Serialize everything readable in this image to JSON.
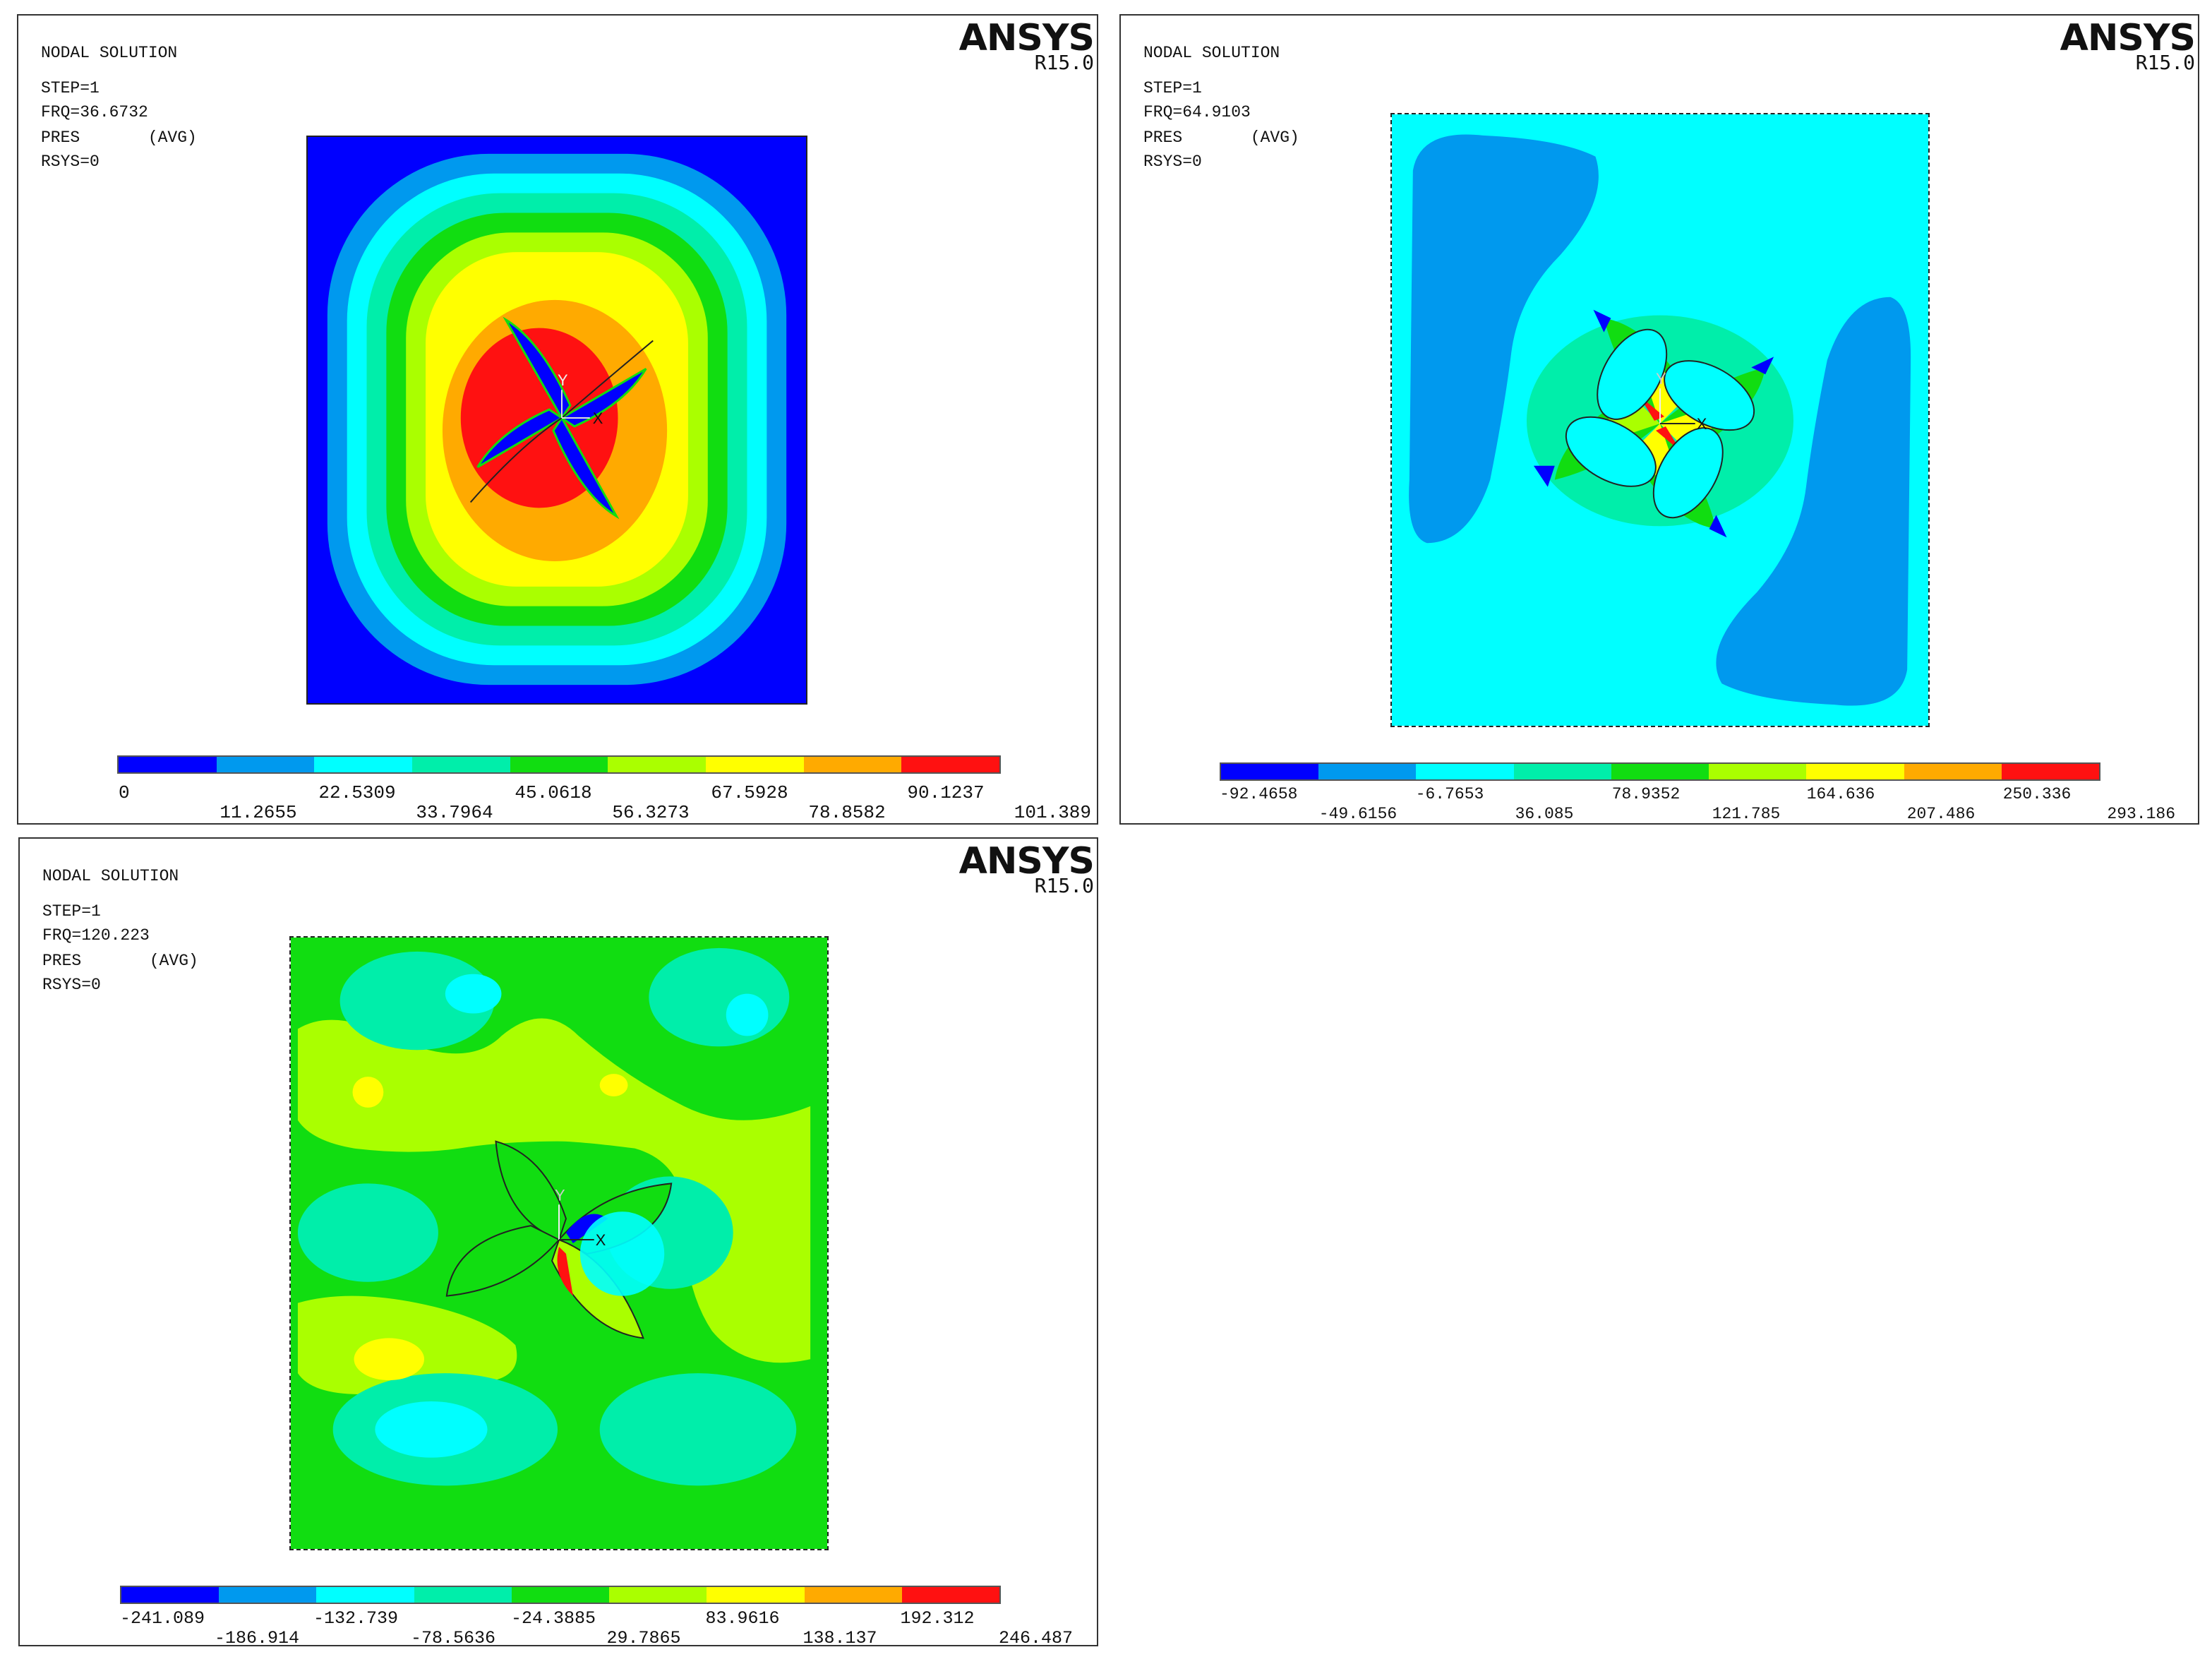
{
  "colors": {
    "scale": [
      "#0000ff",
      "#0099ee",
      "#00ffff",
      "#00eeaa",
      "#11dd11",
      "#aaff00",
      "#ffff00",
      "#ffaa00",
      "#ff1111"
    ]
  },
  "panels": [
    {
      "title": "NODAL SOLUTION",
      "step": "STEP=1",
      "frq": "FRQ=36.6732",
      "pres": "PRES       (AVG)",
      "rsys": "RSYS=0",
      "brand": "ANSYS",
      "version": "R15.0",
      "axis_y": "Y",
      "axis_x": "X",
      "legend_top": [
        "0",
        "22.5309",
        "45.0618",
        "67.5928",
        "90.1237"
      ],
      "legend_bottom": [
        "11.2655",
        "33.7964",
        "56.3273",
        "78.8582",
        "101.389"
      ]
    },
    {
      "title": "NODAL SOLUTION",
      "step": "STEP=1",
      "frq": "FRQ=64.9103",
      "pres": "PRES       (AVG)",
      "rsys": "RSYS=0",
      "brand": "ANSYS",
      "version": "R15.0",
      "axis_y": "Y",
      "axis_x": "X",
      "legend_top": [
        "-92.4658",
        "-6.7653",
        "78.9352",
        "164.636",
        "250.336"
      ],
      "legend_bottom": [
        "-49.6156",
        "36.085",
        "121.785",
        "207.486",
        "293.186"
      ]
    },
    {
      "title": "NODAL SOLUTION",
      "step": "STEP=1",
      "frq": "FRQ=120.223",
      "pres": "PRES       (AVG)",
      "rsys": "RSYS=0",
      "brand": "ANSYS",
      "version": "R15.0",
      "axis_y": "Y",
      "axis_x": "X",
      "legend_top": [
        "-241.089",
        "-132.739",
        "-24.3885",
        "83.9616",
        "192.312"
      ],
      "legend_bottom": [
        "-186.914",
        "-78.5636",
        "29.7865",
        "138.137",
        "246.487"
      ]
    }
  ]
}
